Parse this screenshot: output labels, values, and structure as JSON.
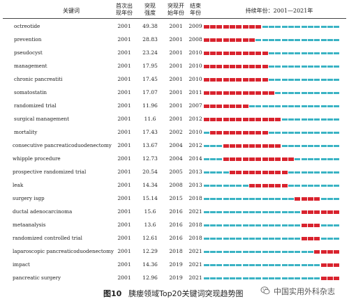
{
  "header": {
    "keyword": "关键词",
    "first_year": "首次出\n现年份",
    "strength": "突现\n强度",
    "burst_start": "突现开\n始年份",
    "burst_end": "结束\n年份",
    "timeline": "持续年份：2001—2021年"
  },
  "timeline_range": {
    "start": 2001,
    "end": 2021
  },
  "colors": {
    "burst": "#d9232e",
    "normal": "#3ab3c4"
  },
  "rows": [
    {
      "keyword": "octreotide",
      "first": "2001",
      "strength": "49.38",
      "start": "2001",
      "end": "2009"
    },
    {
      "keyword": "prevention",
      "first": "2001",
      "strength": "28.83",
      "start": "2001",
      "end": "2008"
    },
    {
      "keyword": "pseudocyst",
      "first": "2001",
      "strength": "23.24",
      "start": "2001",
      "end": "2010"
    },
    {
      "keyword": "management",
      "first": "2001",
      "strength": "17.95",
      "start": "2001",
      "end": "2010"
    },
    {
      "keyword": "chronic pancreatiti",
      "first": "2001",
      "strength": "17.45",
      "start": "2001",
      "end": "2010"
    },
    {
      "keyword": "somatostatin",
      "first": "2001",
      "strength": "17.07",
      "start": "2001",
      "end": "2011"
    },
    {
      "keyword": "randomized trial",
      "first": "2001",
      "strength": "11.96",
      "start": "2001",
      "end": "2007"
    },
    {
      "keyword": "surgical management",
      "first": "2001",
      "strength": "11.6",
      "start": "2001",
      "end": "2012"
    },
    {
      "keyword": "mortality",
      "first": "2001",
      "strength": "17.43",
      "start": "2002",
      "end": "2010"
    },
    {
      "keyword": "consecutive pancreaticoduodenectomy",
      "first": "2001",
      "strength": "13.67",
      "start": "2004",
      "end": "2012"
    },
    {
      "keyword": "whipple procedure",
      "first": "2001",
      "strength": "12.73",
      "start": "2004",
      "end": "2014"
    },
    {
      "keyword": "prospective randomized trial",
      "first": "2001",
      "strength": "20.54",
      "start": "2005",
      "end": "2013"
    },
    {
      "keyword": "leak",
      "first": "2001",
      "strength": "14.34",
      "start": "2008",
      "end": "2013"
    },
    {
      "keyword": "surgery isgp",
      "first": "2001",
      "strength": "15.14",
      "start": "2015",
      "end": "2018"
    },
    {
      "keyword": "ductal adenocarcinoma",
      "first": "2001",
      "strength": "15.6",
      "start": "2016",
      "end": "2021"
    },
    {
      "keyword": "metaanalysis",
      "first": "2001",
      "strength": "13.6",
      "start": "2016",
      "end": "2018"
    },
    {
      "keyword": "randomized controlled trial",
      "first": "2001",
      "strength": "12.61",
      "start": "2016",
      "end": "2018"
    },
    {
      "keyword": "laparoscopic pancreaticoduodenectomy",
      "first": "2001",
      "strength": "12.29",
      "start": "2018",
      "end": "2021"
    },
    {
      "keyword": "impact",
      "first": "2001",
      "strength": "14.36",
      "start": "2019",
      "end": "2021"
    },
    {
      "keyword": "pancreatic surgery",
      "first": "2001",
      "strength": "12.96",
      "start": "2019",
      "end": "2021"
    }
  ],
  "caption": {
    "label": "图10",
    "text": "胰瘘领域Top20关键词突现趋势图"
  },
  "watermark": "中国实用外科杂志"
}
